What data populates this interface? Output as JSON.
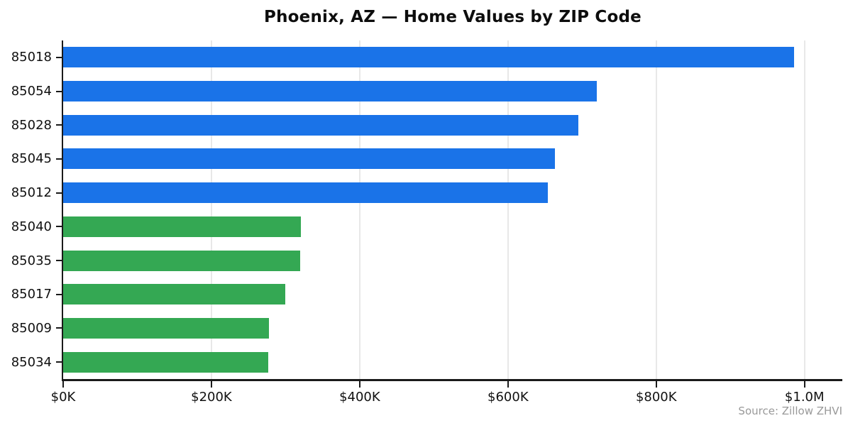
{
  "title": "Phoenix, AZ — Home Values by ZIP Code",
  "source": "Source: Zillow ZHVI",
  "colors": {
    "bar_blue": "#1a73e8",
    "bar_green": "#34a853",
    "grid": "#e8e8e8",
    "axis": "#1a1a1a",
    "source_text": "#999999"
  },
  "chart_data": {
    "type": "bar",
    "orientation": "horizontal",
    "title": "Phoenix, AZ — Home Values by ZIP Code",
    "categories": [
      "85018",
      "85054",
      "85028",
      "85045",
      "85012",
      "85040",
      "85035",
      "85017",
      "85009",
      "85034"
    ],
    "values_thousands": [
      986,
      720,
      695,
      663,
      654,
      321,
      320,
      300,
      278,
      277
    ],
    "bar_colors": [
      "#1a73e8",
      "#1a73e8",
      "#1a73e8",
      "#1a73e8",
      "#1a73e8",
      "#34a853",
      "#34a853",
      "#34a853",
      "#34a853",
      "#34a853"
    ],
    "x_ticks": [
      {
        "value_thousands": 0,
        "label": "$0K"
      },
      {
        "value_thousands": 200,
        "label": "$200K"
      },
      {
        "value_thousands": 400,
        "label": "$400K"
      },
      {
        "value_thousands": 600,
        "label": "$600K"
      },
      {
        "value_thousands": 800,
        "label": "$800K"
      },
      {
        "value_thousands": 1000,
        "label": "$1.0M"
      }
    ],
    "xlim_thousands": [
      0,
      1051
    ],
    "grid": true,
    "legend": false,
    "ylabel": "",
    "xlabel": "",
    "annotation": "Source: Zillow ZHVI"
  }
}
